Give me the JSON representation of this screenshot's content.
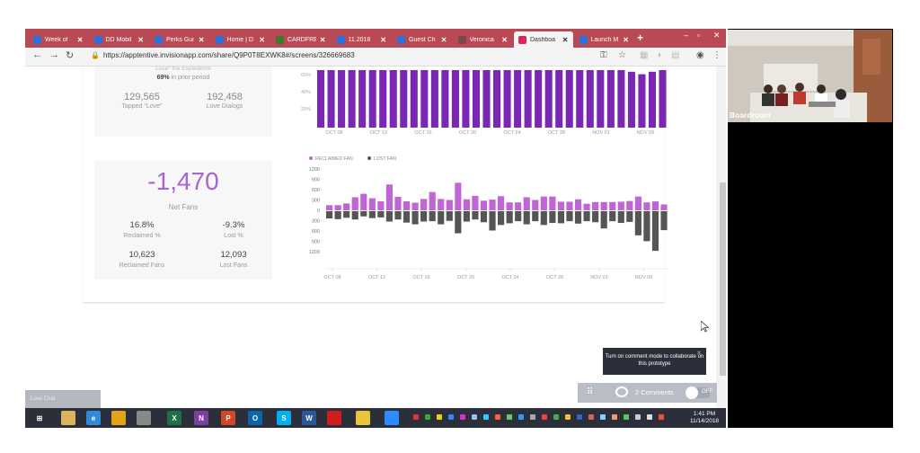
{
  "tabs": [
    {
      "label": "Week of",
      "color": "#2f6fd8"
    },
    {
      "label": "DD Mobil",
      "color": "#2f6fd8"
    },
    {
      "label": "Perks Gui",
      "color": "#2f6fd8"
    },
    {
      "label": "Home | D",
      "color": "#2f6fd8"
    },
    {
      "label": "CARDFRE",
      "color": "#3b7a2e"
    },
    {
      "label": "11.2018",
      "color": "#2f6fd8"
    },
    {
      "label": "Guest Ch",
      "color": "#2f6fd8"
    },
    {
      "label": "Veronica",
      "color": "#7a4a4a"
    },
    {
      "label": "Dashboa",
      "color": "#e0245e",
      "active": true
    },
    {
      "label": "Launch M",
      "color": "#2f6fd8"
    }
  ],
  "address": {
    "url": "https://apptentive.invisionapp.com/share/Q9P0T8EXWK8#/screens/326669683"
  },
  "stats_top": {
    "partial_label": "Love\" the Experience",
    "prior_pct": "69%",
    "prior_text": "in prior period",
    "tapped_value": "129,565",
    "tapped_label": "Tapped \"Love\"",
    "dialogs_value": "192,458",
    "dialogs_label": "Love Dialogs"
  },
  "stats_fans": {
    "net_value": "-1,470",
    "net_label": "Net Fans",
    "reclaimed_pct": "16.8%",
    "reclaimed_pct_label": "Reclaimed %",
    "lost_pct": "-9.3%",
    "lost_pct_label": "Lost %",
    "reclaimed_fans": "10,623",
    "reclaimed_fans_label": "Reclaimed Fans",
    "lost_fans": "12,093",
    "lost_fans_label": "Lost Fans"
  },
  "chart_data": [
    {
      "type": "bar",
      "title": "",
      "xlabel": "",
      "ylabel": "",
      "ylim": [
        0,
        70
      ],
      "yticks": [
        "60%",
        "40%",
        "20%"
      ],
      "x_labels": [
        "OCT 08",
        "OCT 12",
        "OCT 16",
        "OCT 20",
        "OCT 24",
        "OCT 28",
        "NOV 01",
        "NOV 05"
      ],
      "series": [
        {
          "color": "#7b26b5",
          "values": [
            70,
            70,
            70,
            70,
            70,
            70,
            70,
            70,
            70,
            70,
            70,
            70,
            70,
            70,
            70,
            70,
            70,
            70,
            70,
            70,
            70,
            70,
            70,
            70,
            70,
            70,
            70,
            70,
            70,
            70,
            68,
            65,
            68,
            70
          ]
        }
      ]
    },
    {
      "type": "bar",
      "title": "",
      "xlabel": "",
      "ylabel": "",
      "ylim": [
        -1200,
        1200
      ],
      "yticks": [
        "1200",
        "900",
        "600",
        "300",
        "0",
        "300",
        "600",
        "900",
        "1200"
      ],
      "x_labels": [
        "OCT 08",
        "OCT 12",
        "OCT 16",
        "OCT 20",
        "OCT 24",
        "OCT 28",
        "NOV 01",
        "NOV 05"
      ],
      "legend": [
        "RECLAIMED FAN",
        "LOST FAN"
      ],
      "legend_position": "top-left",
      "colors": [
        "#c064d6",
        "#555555"
      ],
      "series": [
        {
          "name": "RECLAIMED FAN",
          "values": [
            150,
            150,
            200,
            380,
            480,
            350,
            260,
            750,
            390,
            260,
            220,
            330,
            530,
            330,
            300,
            800,
            320,
            420,
            280,
            310,
            410,
            230,
            230,
            380,
            300,
            400,
            400,
            250,
            250,
            320,
            190,
            240,
            240,
            240,
            250,
            270,
            400,
            230,
            260,
            170
          ]
        },
        {
          "name": "LOST FAN",
          "values": [
            -210,
            -230,
            -190,
            -240,
            -150,
            -200,
            -180,
            -300,
            -240,
            -330,
            -380,
            -300,
            -290,
            -380,
            -280,
            -640,
            -300,
            -240,
            -320,
            -560,
            -400,
            -350,
            -290,
            -380,
            -290,
            -400,
            -340,
            -350,
            -290,
            -360,
            -290,
            -320,
            -500,
            -290,
            -340,
            -310,
            -700,
            -870,
            -1150,
            -550
          ]
        }
      ]
    }
  ],
  "overlay": {
    "tooltip": "Turn on comment mode to collaborate on this prototype",
    "comments": "2 Comments",
    "toggle": "OFF",
    "ghost": "Love Chat"
  },
  "taskbar": {
    "time": "1:41 PM",
    "date": "11/14/2018"
  },
  "video": {
    "room_label": "Boardroom"
  }
}
